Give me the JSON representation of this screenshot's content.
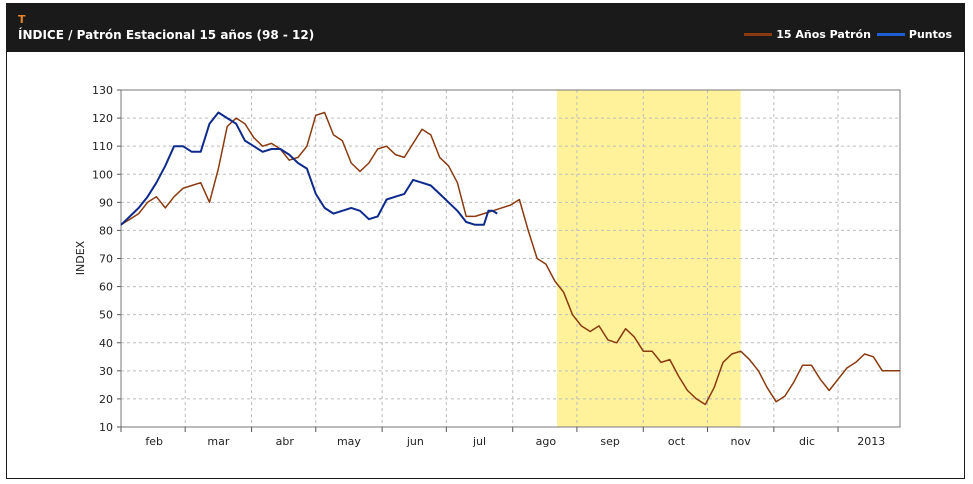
{
  "header": {
    "ticker": "T",
    "title": "ÍNDICE / Patrón Estacional 15 años (98 - 12)"
  },
  "legend": [
    {
      "label": "15 Años Patrón",
      "color": "#8b3a0f"
    },
    {
      "label": "Puntos",
      "color": "#1f5fd6"
    }
  ],
  "chart_data": {
    "type": "line",
    "ylabel": "INDEX",
    "xlabel": "",
    "ylim": [
      10,
      130
    ],
    "yticks": [
      10,
      20,
      30,
      40,
      50,
      60,
      70,
      80,
      90,
      100,
      110,
      120,
      130
    ],
    "x_range_days": [
      0,
      352
    ],
    "month_labels": [
      {
        "label": "feb",
        "day": 15
      },
      {
        "label": "mar",
        "day": 44
      },
      {
        "label": "abr",
        "day": 74
      },
      {
        "label": "may",
        "day": 103
      },
      {
        "label": "jun",
        "day": 133
      },
      {
        "label": "jul",
        "day": 162
      },
      {
        "label": "ago",
        "day": 192
      },
      {
        "label": "sep",
        "day": 221
      },
      {
        "label": "oct",
        "day": 251
      },
      {
        "label": "nov",
        "day": 280
      },
      {
        "label": "dic",
        "day": 310
      },
      {
        "label": "2013",
        "day": 339
      }
    ],
    "month_gridlines_days": [
      0,
      29,
      59,
      88,
      118,
      147,
      177,
      206,
      236,
      265,
      295,
      324
    ],
    "highlight_range_days": [
      197,
      280
    ],
    "highlight_color": "#fff29a",
    "grid": true,
    "series": [
      {
        "name": "15 Años Patrón",
        "color": "#8b3a0f",
        "x": [
          0,
          4,
          8,
          12,
          16,
          20,
          24,
          28,
          32,
          36,
          40,
          44,
          48,
          52,
          56,
          60,
          64,
          68,
          72,
          76,
          80,
          84,
          88,
          92,
          96,
          100,
          104,
          108,
          112,
          116,
          120,
          124,
          128,
          132,
          136,
          140,
          144,
          148,
          152,
          156,
          160,
          164,
          168,
          172,
          176,
          180,
          184,
          188,
          192,
          196,
          200,
          204,
          208,
          212,
          216,
          220,
          224,
          228,
          232,
          236,
          240,
          244,
          248,
          252,
          256,
          260,
          264,
          268,
          272,
          276,
          280,
          284,
          288,
          292,
          296,
          300,
          304,
          308,
          312,
          316,
          320,
          324,
          328,
          332,
          336,
          340,
          344,
          348,
          352
        ],
        "values": [
          82,
          84,
          86,
          90,
          92,
          88,
          92,
          95,
          96,
          97,
          90,
          102,
          117,
          120,
          118,
          113,
          110,
          111,
          109,
          105,
          106,
          110,
          121,
          122,
          114,
          112,
          104,
          101,
          104,
          109,
          110,
          107,
          106,
          111,
          116,
          114,
          106,
          103,
          97,
          85,
          85,
          86,
          87,
          88,
          89,
          91,
          80,
          70,
          68,
          62,
          58,
          50,
          46,
          44,
          46,
          41,
          40,
          45,
          42,
          37,
          37,
          33,
          34,
          28,
          23,
          20,
          18,
          24,
          33,
          36,
          37,
          34,
          30,
          24,
          19,
          21,
          26,
          32,
          32,
          27,
          23,
          27,
          31,
          33,
          36,
          35,
          30,
          30,
          30
        ]
      },
      {
        "name": "Puntos",
        "color": "#0d2a8c",
        "x": [
          0,
          4,
          8,
          12,
          16,
          20,
          24,
          28,
          32,
          36,
          40,
          44,
          48,
          52,
          56,
          60,
          64,
          68,
          72,
          76,
          80,
          84,
          88,
          92,
          96,
          100,
          104,
          108,
          112,
          116,
          120,
          124,
          128,
          132,
          136,
          140,
          144,
          148,
          152,
          156,
          160,
          164,
          166,
          168,
          170
        ],
        "values": [
          82,
          85,
          88,
          92,
          97,
          103,
          110,
          110,
          108,
          108,
          118,
          122,
          120,
          118,
          112,
          110,
          108,
          109,
          109,
          107,
          104,
          102,
          93,
          88,
          86,
          87,
          88,
          87,
          84,
          85,
          91,
          92,
          93,
          98,
          97,
          96,
          93,
          90,
          87,
          83,
          82,
          82,
          87,
          87,
          86
        ]
      }
    ]
  }
}
